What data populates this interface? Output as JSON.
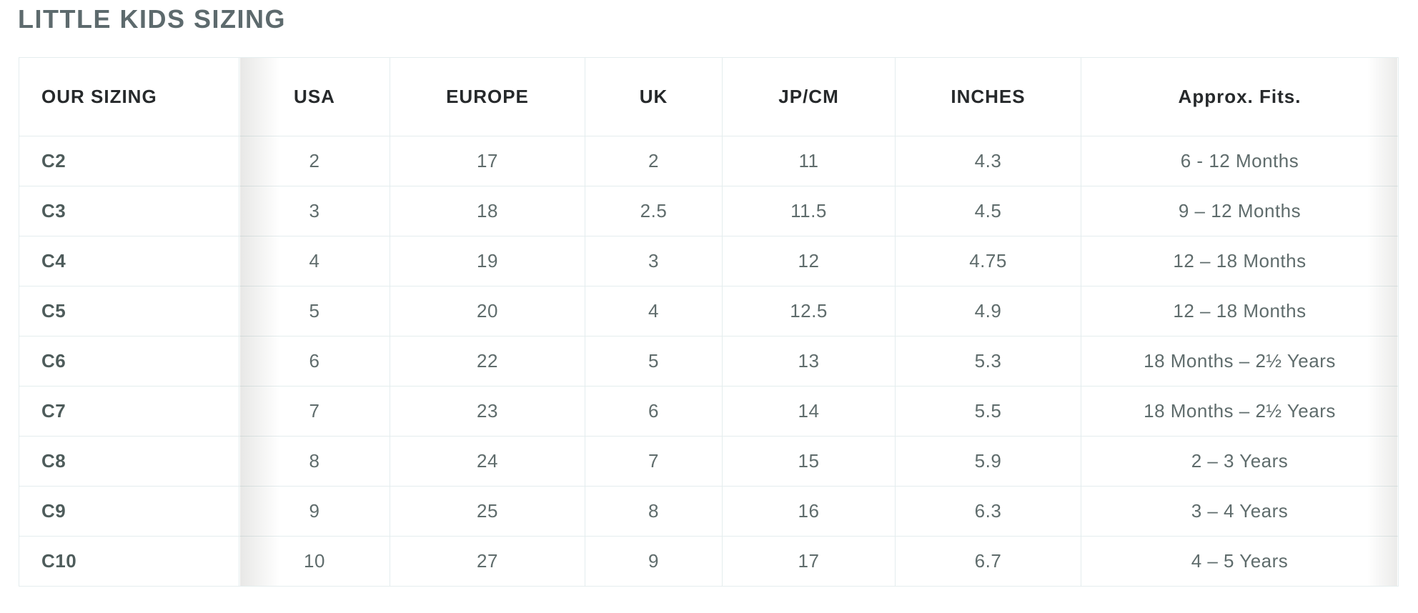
{
  "page": {
    "title": "LITTLE KIDS SIZING"
  },
  "colors": {
    "title_color": "#5d6a6d",
    "header_text_color": "#26292b",
    "cell_text_color": "#5f6c6c",
    "row_label_color": "#4e5c5b",
    "grid_line_color": "#e4edee"
  },
  "table": {
    "columns": [
      {
        "label": "OUR SIZING"
      },
      {
        "label": "USA"
      },
      {
        "label": "EUROPE"
      },
      {
        "label": "UK"
      },
      {
        "label": "JP/CM"
      },
      {
        "label": "INCHES"
      },
      {
        "label": "Approx. Fits."
      }
    ],
    "rows": [
      [
        "C2",
        "2",
        "17",
        "2",
        "11",
        "4.3",
        "6 - 12 Months"
      ],
      [
        "C3",
        "3",
        "18",
        "2.5",
        "11.5",
        "4.5",
        "9 – 12 Months"
      ],
      [
        "C4",
        "4",
        "19",
        "3",
        "12",
        "4.75",
        "12 – 18 Months"
      ],
      [
        "C5",
        "5",
        "20",
        "4",
        "12.5",
        "4.9",
        "12 – 18 Months"
      ],
      [
        "C6",
        "6",
        "22",
        "5",
        "13",
        "5.3",
        "18 Months – 2½ Years"
      ],
      [
        "C7",
        "7",
        "23",
        "6",
        "14",
        "5.5",
        "18 Months – 2½ Years"
      ],
      [
        "C8",
        "8",
        "24",
        "7",
        "15",
        "5.9",
        "2 – 3 Years"
      ],
      [
        "C9",
        "9",
        "25",
        "8",
        "16",
        "6.3",
        "3 – 4 Years"
      ],
      [
        "C10",
        "10",
        "27",
        "9",
        "17",
        "6.7",
        "4 – 5 Years"
      ]
    ]
  }
}
